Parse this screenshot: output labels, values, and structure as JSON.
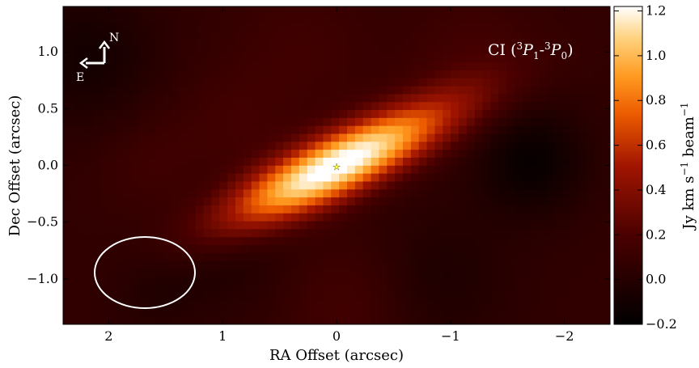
{
  "chart_data": {
    "type": "heatmap",
    "title": "",
    "xlabel": "RA Offset (arcsec)",
    "ylabel": "Dec Offset (arcsec)",
    "xlim": [
      2.4,
      -2.4
    ],
    "ylim": [
      -1.4,
      1.4
    ],
    "x_ticks": [
      {
        "value": 2,
        "label": "2"
      },
      {
        "value": 1,
        "label": "1"
      },
      {
        "value": 0,
        "label": "0"
      },
      {
        "value": -1,
        "label": "−1"
      },
      {
        "value": -2,
        "label": "−2"
      }
    ],
    "y_ticks": [
      {
        "value": 1.0,
        "label": "1.0"
      },
      {
        "value": 0.5,
        "label": "0.5"
      },
      {
        "value": 0.0,
        "label": "0.0"
      },
      {
        "value": -0.5,
        "label": "−0.5"
      },
      {
        "value": -1.0,
        "label": "−1.0"
      }
    ],
    "colorbar": {
      "label": "Jy km s⁻¹ beam⁻¹",
      "range": [
        -0.2,
        1.22
      ],
      "colormap": "gist_heat",
      "ticks": [
        {
          "value": 1.2,
          "label": "1.2"
        },
        {
          "value": 1.0,
          "label": "1.0"
        },
        {
          "value": 0.8,
          "label": "0.8"
        },
        {
          "value": 0.6,
          "label": "0.6"
        },
        {
          "value": 0.4,
          "label": "0.4"
        },
        {
          "value": 0.2,
          "label": "0.2"
        },
        {
          "value": 0.0,
          "label": "0.0"
        },
        {
          "value": -0.2,
          "label": "−0.2"
        }
      ]
    },
    "line_label": {
      "species": "CI (",
      "upper": "3",
      "upper_state": "P",
      "upper_sub": "1",
      "sep": "-",
      "lower": "3",
      "lower_state": "P",
      "lower_sub": "0",
      "close": ")"
    },
    "compass": {
      "north": "N",
      "east": "E"
    },
    "emission": {
      "peak_jy": 1.22,
      "center": [
        0.0,
        0.0
      ],
      "major_fwhm_arcsec": 1.8,
      "minor_fwhm_arcsec": 0.45,
      "position_angle_deg": 116,
      "pixel_arcsec": 0.07,
      "background_jy": 0.06
    },
    "beam": {
      "center": [
        1.7,
        -0.95
      ],
      "major_arcsec": 0.87,
      "minor_arcsec": 0.62,
      "angle_deg": 0
    },
    "star_marker": {
      "position": [
        0.0,
        0.0
      ],
      "color": "#ffff33"
    }
  }
}
